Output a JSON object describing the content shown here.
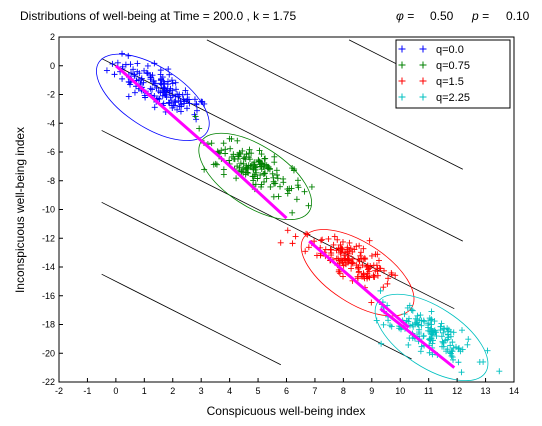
{
  "chart_data": {
    "type": "scatter",
    "title": "Distributions of well-being at Time =    200.0    , k =   1.75",
    "title_phi_symbol": "φ =",
    "title_phi_value": "0.50",
    "title_p_symbol": "p =",
    "title_p_value": "0.10",
    "xlabel": "Conspicuous well-being index",
    "ylabel": "Inconspicuous well-being index",
    "xlim": [
      -2,
      14
    ],
    "ylim": [
      -22,
      2
    ],
    "xticks": [
      "-2",
      "-1",
      "0",
      "1",
      "2",
      "3",
      "4",
      "5",
      "6",
      "7",
      "8",
      "9",
      "10",
      "11",
      "12",
      "13",
      "14"
    ],
    "yticks": [
      "2",
      "0",
      "-2",
      "-4",
      "-6",
      "-8",
      "-10",
      "-12",
      "-14",
      "-16",
      "-18",
      "-20",
      "-22"
    ],
    "grid": false,
    "legend_position": "top-right",
    "legend_marker": "+  +",
    "iso_lines": [
      {
        "x": [
          -0.5,
          5.8
        ],
        "y": [
          -14.5,
          -20.8
        ]
      },
      {
        "x": [
          -0.5,
          10.4
        ],
        "y": [
          -9.5,
          -20.4
        ]
      },
      {
        "x": [
          -0.5,
          11.9
        ],
        "y": [
          -4.5,
          -16.9
        ]
      },
      {
        "x": [
          -0.5,
          12.2
        ],
        "y": [
          0.5,
          -12.2
        ]
      },
      {
        "x": [
          3.2,
          12.2
        ],
        "y": [
          1.8,
          -7.2
        ]
      },
      {
        "x": [
          8.2,
          12.2
        ],
        "y": [
          1.8,
          -2.2
        ]
      }
    ],
    "series": [
      {
        "name": "q=0.0",
        "color": "#0000ff",
        "center": [
          1.5,
          -1.6
        ],
        "spread": [
          1.0,
          0.45
        ],
        "count": 150,
        "ellipse": {
          "center": [
            1.3,
            -2.2
          ],
          "rx": 1.6,
          "ry": 0.75
        },
        "fit_line": {
          "x": [
            0.0,
            3.8
          ],
          "y": [
            0.0,
            -6.6
          ]
        }
      },
      {
        "name": "q=0.75",
        "color": "#008000",
        "center": [
          4.9,
          -7.1
        ],
        "spread": [
          1.0,
          0.45
        ],
        "count": 150,
        "ellipse": {
          "center": [
            4.9,
            -7.7
          ],
          "rx": 1.6,
          "ry": 0.75
        },
        "fit_line": {
          "x": [
            3.8,
            6.0
          ],
          "y": [
            -6.6,
            -10.6
          ]
        }
      },
      {
        "name": "q=1.5",
        "color": "#ff0000",
        "center": [
          8.2,
          -13.6
        ],
        "spread": [
          1.0,
          0.45
        ],
        "count": 150,
        "ellipse": {
          "center": [
            8.5,
            -14.4
          ],
          "rx": 1.6,
          "ry": 0.75
        },
        "fit_line": {
          "x": [
            6.8,
            10.3
          ],
          "y": [
            -12.2,
            -18.2
          ]
        }
      },
      {
        "name": "q=2.25",
        "color": "#00c0c0",
        "center": [
          11.0,
          -18.6
        ],
        "spread": [
          1.0,
          0.45
        ],
        "count": 150,
        "ellipse": {
          "center": [
            11.1,
            -18.9
          ],
          "rx": 1.6,
          "ry": 0.75
        },
        "fit_line": {
          "x": [
            9.3,
            11.9
          ],
          "y": [
            -16.9,
            -21.0
          ]
        }
      }
    ]
  }
}
